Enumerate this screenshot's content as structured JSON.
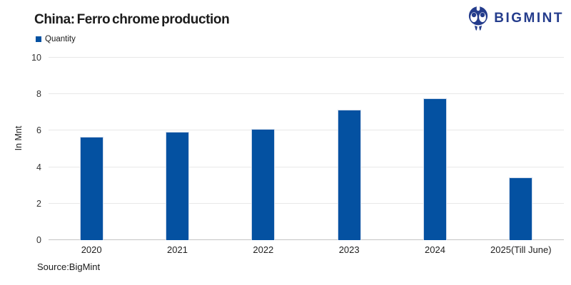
{
  "header": {
    "title": "China: Ferro chrome production",
    "logo": {
      "text": "BIGMINT",
      "icon": "bigmint-logo-icon",
      "color": "#243c8c"
    }
  },
  "legend": {
    "label": "Quantity",
    "color": "#0451a1"
  },
  "source": "Source:BigMint",
  "chart_data": {
    "type": "bar",
    "title": "China: Ferro chrome production",
    "categories": [
      "2020",
      "2021",
      "2022",
      "2023",
      "2024",
      "2025(Till June)"
    ],
    "series": [
      {
        "name": "Quantity",
        "values": [
          5.65,
          5.93,
          6.08,
          7.15,
          7.76,
          3.45
        ]
      }
    ],
    "xlabel": "",
    "ylabel": "In Mnt",
    "ylim": [
      0,
      10
    ],
    "yticks": [
      0,
      2,
      4,
      6,
      8,
      10
    ],
    "grid": true,
    "legend_position": "top-left",
    "bar_color": "#0451a1"
  }
}
